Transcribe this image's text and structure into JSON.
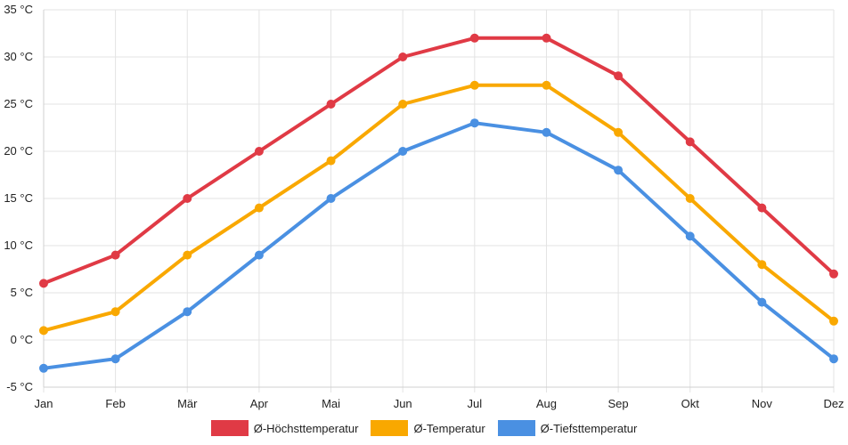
{
  "chart_data": {
    "type": "line",
    "categories": [
      "Jan",
      "Feb",
      "Mär",
      "Apr",
      "Mai",
      "Jun",
      "Jul",
      "Aug",
      "Sep",
      "Okt",
      "Nov",
      "Dez"
    ],
    "series": [
      {
        "name": "Ø-Höchsttemperatur",
        "color": "#e03a45",
        "values": [
          6,
          9,
          15,
          20,
          25,
          30,
          32,
          32,
          28,
          21,
          14,
          7
        ]
      },
      {
        "name": "Ø-Temperatur",
        "color": "#f9a800",
        "values": [
          1,
          3,
          9,
          14,
          19,
          25,
          27,
          27,
          22,
          15,
          8,
          2
        ]
      },
      {
        "name": "Ø-Tiefsttemperatur",
        "color": "#4a90e2",
        "values": [
          -3,
          -2,
          3,
          9,
          15,
          20,
          23,
          22,
          18,
          11,
          4,
          -2
        ]
      }
    ],
    "y_ticks": [
      "35 °C",
      "30 °C",
      "25 °C",
      "20 °C",
      "15 °C",
      "10 °C",
      "5 °C",
      "0 °C",
      "-5 °C"
    ],
    "ylim": [
      -5,
      35
    ],
    "grid": true,
    "legend_position": "bottom"
  }
}
